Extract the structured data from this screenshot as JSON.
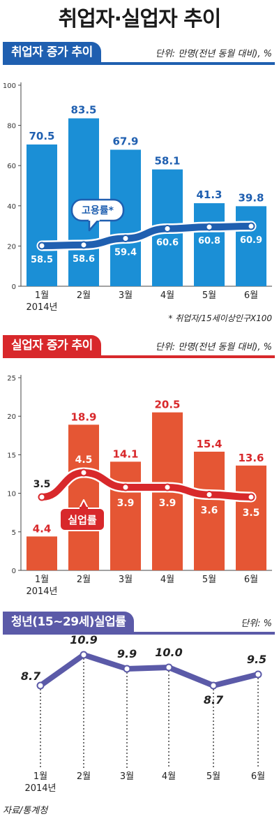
{
  "title": "취업자·실업자 추이",
  "source": "자료/통계청",
  "colors": {
    "blue": "#1f5fb0",
    "blue_bar": "#1b8fd6",
    "red": "#d8282b",
    "red_bar": "#e55634",
    "purple": "#5b5aa8"
  },
  "chart_data": [
    {
      "id": "employment",
      "type": "bar",
      "title": "취업자 증가 추이",
      "unit": "단위: 만명(전년 동월 대비), %",
      "categories": [
        "1월",
        "2월",
        "3월",
        "4월",
        "5월",
        "6월"
      ],
      "year_label": "2014년",
      "ylim": [
        0,
        100
      ],
      "yticks": [
        0,
        20,
        40,
        60,
        80,
        100
      ],
      "grid": false,
      "bars": {
        "values": [
          70.5,
          83.5,
          67.9,
          58.1,
          41.3,
          39.8
        ]
      },
      "line": {
        "name": "고용률*",
        "values": [
          58.5,
          58.6,
          59.4,
          60.6,
          60.8,
          60.9
        ]
      },
      "footnote": "* 취업자/15세이상인구X100"
    },
    {
      "id": "unemployment",
      "type": "bar",
      "title": "실업자 증가 추이",
      "unit": "단위: 만명(전년 동월 대비), %",
      "categories": [
        "1월",
        "2월",
        "3월",
        "4월",
        "5월",
        "6월"
      ],
      "year_label": "2014년",
      "ylim": [
        0,
        25
      ],
      "yticks": [
        0,
        5,
        10,
        15,
        20,
        25
      ],
      "grid": false,
      "bars": {
        "values": [
          4.4,
          18.9,
          14.1,
          20.5,
          15.4,
          13.6
        ]
      },
      "line": {
        "name": "실업률",
        "values": [
          3.5,
          4.5,
          3.9,
          3.9,
          3.6,
          3.5
        ]
      }
    },
    {
      "id": "youth",
      "type": "line",
      "title": "청년(15~29세)실업률",
      "unit": "단위: %",
      "categories": [
        "1월",
        "2월",
        "3월",
        "4월",
        "5월",
        "6월"
      ],
      "year_label": "2014년",
      "grid": false,
      "line": {
        "values": [
          8.7,
          10.9,
          9.9,
          10.0,
          8.7,
          9.5
        ]
      }
    }
  ]
}
